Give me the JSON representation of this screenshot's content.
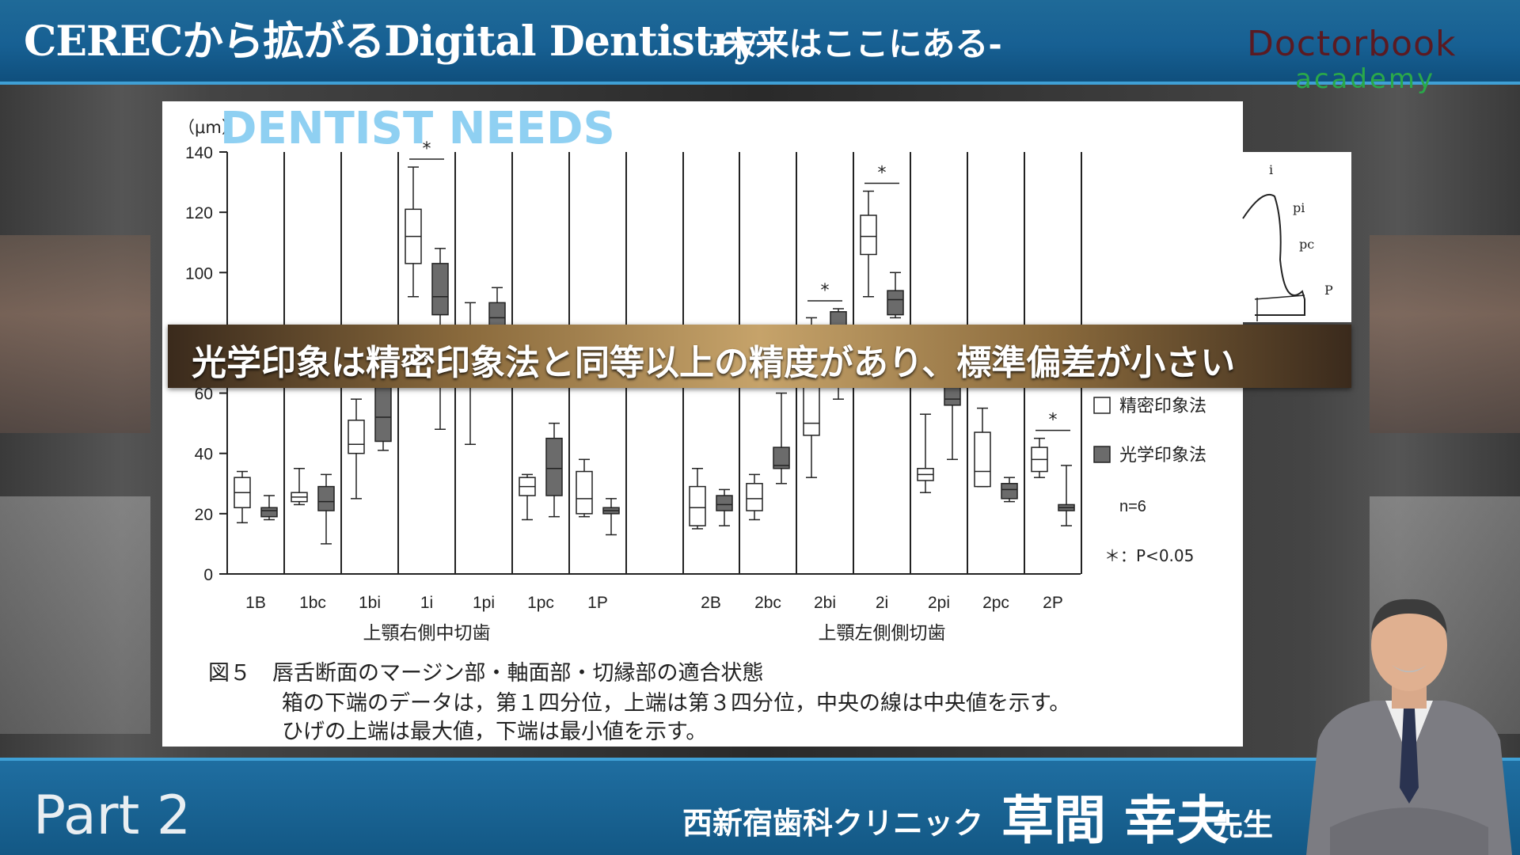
{
  "header": {
    "title": "CERECから拡がるDigital Dentistry",
    "subtitle": "-未来はここにある-",
    "logo_main": "Doctorbook",
    "logo_sub": "academy"
  },
  "slide": {
    "title": "DENTIST NEEDS",
    "banner": "光学印象は精密印象法と同等以上の精度があり、標準偏差が小さい",
    "caption_lines": [
      "図５　唇舌断面のマージン部・軸面部・切縁部の適合状態",
      "箱の下端のデータは，第１四分位，上端は第３四分位，中央の線は中央値を示す。",
      "ひげの上端は最大値，下端は最小値を示す。"
    ],
    "diagram_labels": [
      "i",
      "pi",
      "pc",
      "P"
    ]
  },
  "chart_data": {
    "type": "box",
    "ylabel": "（μm）",
    "ylim": [
      0,
      140
    ],
    "yticks": [
      0,
      20,
      40,
      60,
      80,
      100,
      120,
      140
    ],
    "groups": [
      {
        "label": "上顎右側中切歯",
        "categories": [
          "1B",
          "1bc",
          "1bi",
          "1i",
          "1pi",
          "1pc",
          "1P"
        ]
      },
      {
        "label": "上顎左側側切歯",
        "categories": [
          "2B",
          "2bc",
          "2bi",
          "2i",
          "2pi",
          "2pc",
          "2P"
        ]
      }
    ],
    "series": [
      {
        "name": "精密印象法",
        "color": "#ffffff"
      },
      {
        "name": "光学印象法",
        "color": "#6b6b6b"
      }
    ],
    "boxes": [
      {
        "cat": "1B",
        "s": 0,
        "min": 17,
        "q1": 22,
        "med": 27,
        "q3": 32,
        "max": 34
      },
      {
        "cat": "1B",
        "s": 1,
        "min": 18,
        "q1": 19,
        "med": 21,
        "q3": 22,
        "max": 26
      },
      {
        "cat": "1bc",
        "s": 0,
        "min": 23,
        "q1": 24,
        "med": 25.5,
        "q3": 27,
        "max": 35
      },
      {
        "cat": "1bc",
        "s": 1,
        "min": 10,
        "q1": 21,
        "med": 24,
        "q3": 29,
        "max": 33
      },
      {
        "cat": "1bi",
        "s": 0,
        "min": 25,
        "q1": 40,
        "med": 43,
        "q3": 51,
        "max": 58
      },
      {
        "cat": "1bi",
        "s": 1,
        "min": 41,
        "q1": 44,
        "med": 52,
        "q3": 62,
        "max": 67
      },
      {
        "cat": "1i",
        "s": 0,
        "min": 92,
        "q1": 103,
        "med": 112,
        "q3": 121,
        "max": 135
      },
      {
        "cat": "1i",
        "s": 1,
        "min": 48,
        "q1": 86,
        "med": 92,
        "q3": 103,
        "max": 108
      },
      {
        "cat": "1pi",
        "s": 0,
        "min": 43,
        "q1": 68,
        "med": 75,
        "q3": 80,
        "max": 90
      },
      {
        "cat": "1pi",
        "s": 1,
        "min": 70,
        "q1": 80,
        "med": 85,
        "q3": 90,
        "max": 95
      },
      {
        "cat": "1pc",
        "s": 0,
        "min": 18,
        "q1": 26,
        "med": 29,
        "q3": 32,
        "max": 33
      },
      {
        "cat": "1pc",
        "s": 1,
        "min": 19,
        "q1": 26,
        "med": 35,
        "q3": 45,
        "max": 50
      },
      {
        "cat": "1P",
        "s": 0,
        "min": 19,
        "q1": 20,
        "med": 25,
        "q3": 34,
        "max": 38
      },
      {
        "cat": "1P",
        "s": 1,
        "min": 13,
        "q1": 20,
        "med": 21,
        "q3": 22,
        "max": 25
      },
      {
        "cat": "2B",
        "s": 0,
        "min": 15,
        "q1": 16,
        "med": 22,
        "q3": 29,
        "max": 35
      },
      {
        "cat": "2B",
        "s": 1,
        "min": 16,
        "q1": 21,
        "med": 23,
        "q3": 26,
        "max": 28
      },
      {
        "cat": "2bc",
        "s": 0,
        "min": 18,
        "q1": 21,
        "med": 25,
        "q3": 30,
        "max": 33
      },
      {
        "cat": "2bc",
        "s": 1,
        "min": 30,
        "q1": 35,
        "med": 36,
        "q3": 42,
        "max": 60
      },
      {
        "cat": "2bi",
        "s": 0,
        "min": 32,
        "q1": 46,
        "med": 50,
        "q3": 62,
        "max": 85
      },
      {
        "cat": "2bi",
        "s": 1,
        "min": 58,
        "q1": 70,
        "med": 80,
        "q3": 87,
        "max": 88
      },
      {
        "cat": "2i",
        "s": 0,
        "min": 92,
        "q1": 106,
        "med": 112,
        "q3": 119,
        "max": 127
      },
      {
        "cat": "2i",
        "s": 1,
        "min": 85,
        "q1": 86,
        "med": 91,
        "q3": 94,
        "max": 100
      },
      {
        "cat": "2pi",
        "s": 0,
        "min": 27,
        "q1": 31,
        "med": 33,
        "q3": 35,
        "max": 53
      },
      {
        "cat": "2pi",
        "s": 1,
        "min": 38,
        "q1": 56,
        "med": 58,
        "q3": 62,
        "max": 68
      },
      {
        "cat": "2pc",
        "s": 0,
        "min": 29,
        "q1": 29,
        "med": 34,
        "q3": 47,
        "max": 55
      },
      {
        "cat": "2pc",
        "s": 1,
        "min": 24,
        "q1": 25,
        "med": 28,
        "q3": 30,
        "max": 32
      },
      {
        "cat": "2P",
        "s": 0,
        "min": 32,
        "q1": 34,
        "med": 38,
        "q3": 42,
        "max": 45
      },
      {
        "cat": "2P",
        "s": 1,
        "min": 16,
        "q1": 21,
        "med": 22,
        "q3": 23,
        "max": 36
      }
    ],
    "significance": [
      {
        "cat": "1i",
        "label": "*"
      },
      {
        "cat": "2bi",
        "label": "*"
      },
      {
        "cat": "2i",
        "label": "*"
      },
      {
        "cat": "2pi",
        "label": "*"
      },
      {
        "cat": "2P",
        "label": "*"
      }
    ],
    "legend": {
      "items": [
        "精密印象法",
        "光学印象法"
      ],
      "n_label": "n=6",
      "sig_label": "＊：P<0.05",
      "position": "right"
    }
  },
  "footer": {
    "part": "Part 2",
    "clinic": "西新宿歯科クリニック",
    "doctor": "草間 幸夫",
    "honorific": "先生"
  }
}
